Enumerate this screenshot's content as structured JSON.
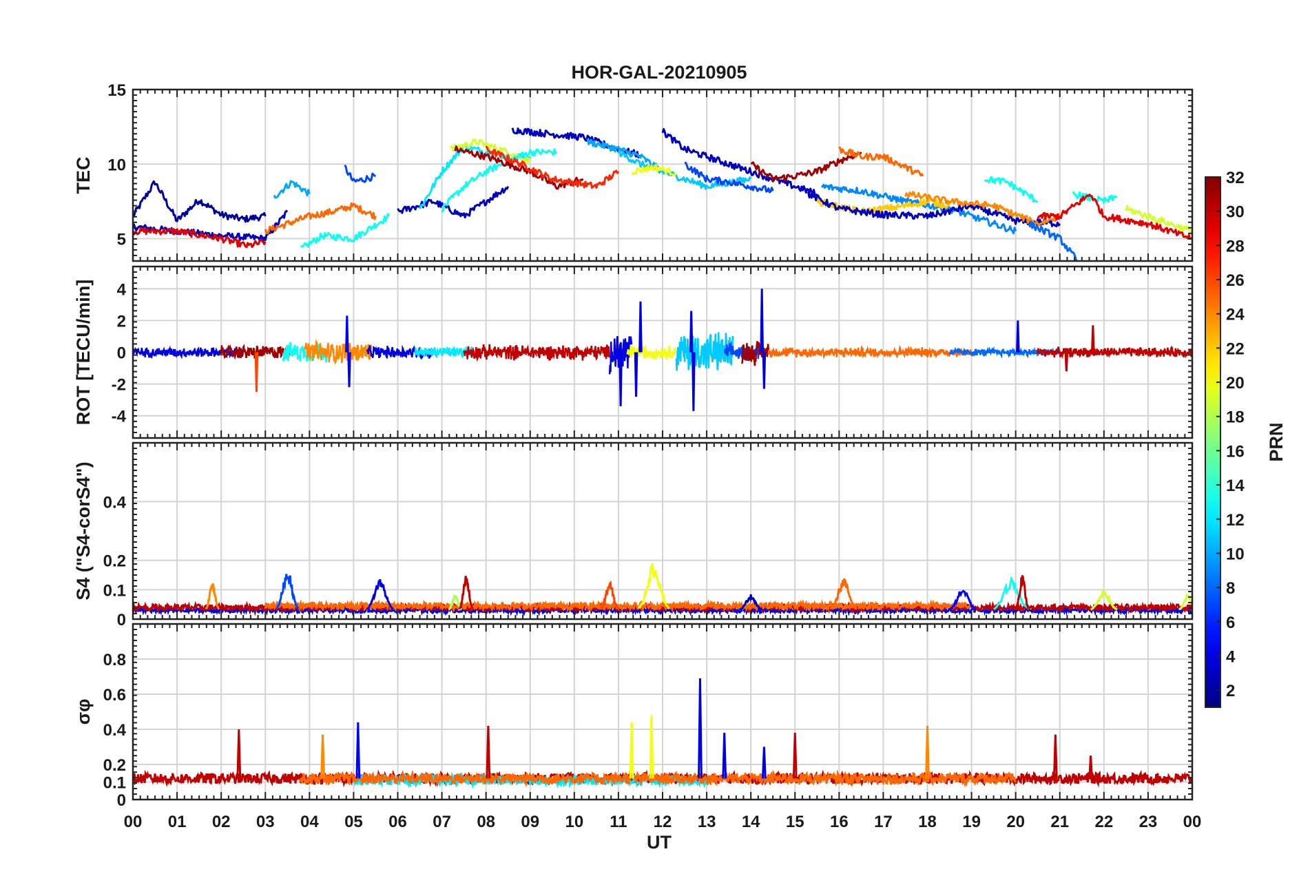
{
  "chart_data": {
    "type": "line",
    "title": "HOR-GAL-20210905",
    "xlabel": "UT",
    "x_tick_labels": [
      "00",
      "01",
      "02",
      "03",
      "04",
      "05",
      "06",
      "07",
      "08",
      "09",
      "10",
      "11",
      "12",
      "13",
      "14",
      "15",
      "16",
      "17",
      "18",
      "19",
      "20",
      "21",
      "22",
      "23",
      "00"
    ],
    "xlim_hours": [
      0,
      24
    ],
    "grid": true,
    "colorbar": {
      "label": "PRN",
      "range": [
        1,
        32
      ],
      "colormap": "jet",
      "tick_labels": [
        "2",
        "4",
        "6",
        "8",
        "10",
        "12",
        "14",
        "16",
        "18",
        "20",
        "22",
        "24",
        "26",
        "28",
        "30",
        "32"
      ]
    },
    "panels": [
      {
        "ylabel": "TEC",
        "ylim": [
          3.5,
          15
        ],
        "y_tick_labels": [
          "5",
          "10",
          "15"
        ],
        "series": [
          {
            "prn": 2,
            "x": [
              0.0,
              0.5,
              1.0,
              1.5,
              2.0,
              2.5,
              3.0
            ],
            "y": [
              6.5,
              8.8,
              6.2,
              7.6,
              6.6,
              6.3,
              6.5
            ]
          },
          {
            "prn": 3,
            "x": [
              0.0,
              1.0,
              2.0,
              3.0,
              3.5
            ],
            "y": [
              5.8,
              5.5,
              5.2,
              5.0,
              6.8
            ]
          },
          {
            "prn": 10,
            "x": [
              3.2,
              3.6,
              4.0
            ],
            "y": [
              7.8,
              8.8,
              8.0
            ]
          },
          {
            "prn": 7,
            "x": [
              4.8,
              5.0,
              5.5
            ],
            "y": [
              9.8,
              8.8,
              9.2
            ]
          },
          {
            "prn": 13,
            "x": [
              3.8,
              4.3,
              5.0,
              5.8
            ],
            "y": [
              4.3,
              5.2,
              5.0,
              6.5
            ]
          },
          {
            "prn": 25,
            "x": [
              3.0,
              3.5,
              4.0,
              4.5,
              5.0,
              5.5
            ],
            "y": [
              5.5,
              6.0,
              6.5,
              6.8,
              7.2,
              6.5
            ]
          },
          {
            "prn": 29,
            "x": [
              0.0,
              1.0,
              2.0,
              2.6,
              3.0
            ],
            "y": [
              5.5,
              5.5,
              5.0,
              4.5,
              4.8
            ]
          },
          {
            "prn": 3,
            "x": [
              6.0,
              6.8,
              7.5,
              8.0,
              8.5
            ],
            "y": [
              6.8,
              7.5,
              6.5,
              7.5,
              8.5
            ]
          },
          {
            "prn": 12,
            "x": [
              6.5,
              7.0,
              7.5,
              8.0,
              8.5,
              9.0
            ],
            "y": [
              7.0,
              9.5,
              11.2,
              10.8,
              10.5,
              10.5
            ]
          },
          {
            "prn": 19,
            "x": [
              7.2,
              7.8,
              8.5,
              9.0
            ],
            "y": [
              11.0,
              11.5,
              10.8,
              10.2
            ]
          },
          {
            "prn": 13,
            "x": [
              7.0,
              7.5,
              8.0,
              8.5,
              9.0,
              9.6
            ],
            "y": [
              7.0,
              8.5,
              9.5,
              10.2,
              10.8,
              10.8
            ]
          },
          {
            "prn": 31,
            "x": [
              7.3,
              8.0,
              8.5,
              9.0,
              9.6,
              10.2
            ],
            "y": [
              11.0,
              10.5,
              10.0,
              9.5,
              8.5,
              9.0
            ]
          },
          {
            "prn": 27,
            "x": [
              8.0,
              8.8,
              9.5,
              10.5,
              11.0
            ],
            "y": [
              11.0,
              10.0,
              9.0,
              8.5,
              9.5
            ]
          },
          {
            "prn": 3,
            "x": [
              8.6,
              9.5,
              10.2,
              11.0,
              11.5
            ],
            "y": [
              12.3,
              12.0,
              11.8,
              11.0,
              10.6
            ]
          },
          {
            "prn": 10,
            "x": [
              10.3,
              11.0,
              11.5,
              12.0
            ],
            "y": [
              11.5,
              11.0,
              10.5,
              9.5
            ]
          },
          {
            "prn": 11,
            "x": [
              11.0,
              11.5,
              12.0,
              12.5,
              13.0,
              14.0
            ],
            "y": [
              10.8,
              10.0,
              9.5,
              9.0,
              8.5,
              9.0
            ]
          },
          {
            "prn": 20,
            "x": [
              11.3,
              11.8,
              12.3
            ],
            "y": [
              9.5,
              9.8,
              9.4
            ]
          },
          {
            "prn": 3,
            "x": [
              12.0,
              12.5,
              13.0,
              13.5,
              14.0,
              14.5,
              15.0,
              15.5
            ],
            "y": [
              12.2,
              11.0,
              10.5,
              10.0,
              9.5,
              9.0,
              8.5,
              8.0
            ]
          },
          {
            "prn": 7,
            "x": [
              12.5,
              13.0,
              13.5,
              14.0,
              14.5
            ],
            "y": [
              10.0,
              9.0,
              8.8,
              8.5,
              8.2
            ]
          },
          {
            "prn": 31,
            "x": [
              14.0,
              14.5,
              15.0,
              15.5,
              16.0,
              16.5
            ],
            "y": [
              10.0,
              9.0,
              9.2,
              9.5,
              10.2,
              10.8
            ]
          },
          {
            "prn": 25,
            "x": [
              16.0,
              16.5,
              17.0,
              17.5,
              17.9
            ],
            "y": [
              11.0,
              10.5,
              10.5,
              9.8,
              9.2
            ]
          },
          {
            "prn": 9,
            "x": [
              15.6,
              16.5,
              17.5,
              18.5,
              19.5,
              20.0
            ],
            "y": [
              8.5,
              8.2,
              7.5,
              7.0,
              6.0,
              5.5
            ]
          },
          {
            "prn": 22,
            "x": [
              15.5,
              16.5,
              17.5,
              18.0,
              18.5
            ],
            "y": [
              7.5,
              6.8,
              7.2,
              7.5,
              7.2
            ]
          },
          {
            "prn": 3,
            "x": [
              15.3,
              16.0,
              17.0,
              18.0,
              19.0,
              20.0,
              21.0
            ],
            "y": [
              8.0,
              7.0,
              6.6,
              6.5,
              7.2,
              6.2,
              6.0
            ]
          },
          {
            "prn": 13,
            "x": [
              19.3,
              19.8,
              20.5
            ],
            "y": [
              9.0,
              8.8,
              7.5
            ]
          },
          {
            "prn": 24,
            "x": [
              17.5,
              18.5,
              19.5,
              20.5,
              21.0
            ],
            "y": [
              8.0,
              7.5,
              7.2,
              6.0,
              6.5
            ]
          },
          {
            "prn": 8,
            "x": [
              20.3,
              21.0,
              21.4
            ],
            "y": [
              6.0,
              5.0,
              3.5
            ]
          },
          {
            "prn": 13,
            "x": [
              21.3,
              22.0,
              22.3
            ],
            "y": [
              8.0,
              7.5,
              7.8
            ]
          },
          {
            "prn": 29,
            "x": [
              20.5,
              21.0,
              21.7,
              22.0,
              23.0,
              24.0
            ],
            "y": [
              6.5,
              6.5,
              8.0,
              6.5,
              6.0,
              5.0
            ]
          },
          {
            "prn": 19,
            "x": [
              22.5,
              23.0,
              23.5,
              24.0
            ],
            "y": [
              7.0,
              6.5,
              6.0,
              5.5
            ]
          }
        ]
      },
      {
        "ylabel": "ROT [TECU/min]",
        "ylim": [
          -5.4,
          5.4
        ],
        "y_tick_labels": [
          "-4",
          "-2",
          "0",
          "2",
          "4"
        ],
        "segments": [
          {
            "prn": 4,
            "x0": 0.0,
            "x1": 2.5,
            "amp": 0.35
          },
          {
            "prn": 31,
            "x0": 2.0,
            "x1": 3.6,
            "amp": 0.5
          },
          {
            "prn": 13,
            "x0": 3.4,
            "x1": 4.4,
            "amp": 0.7
          },
          {
            "prn": 24,
            "x0": 3.9,
            "x1": 5.4,
            "amp": 0.8
          },
          {
            "prn": 4,
            "x0": 5.3,
            "x1": 6.8,
            "amp": 0.45
          },
          {
            "prn": 12,
            "x0": 6.4,
            "x1": 7.8,
            "amp": 0.4
          },
          {
            "prn": 30,
            "x0": 7.5,
            "x1": 10.8,
            "amp": 0.55
          },
          {
            "prn": 4,
            "x0": 10.8,
            "x1": 11.3,
            "amp": 1.8
          },
          {
            "prn": 20,
            "x0": 11.2,
            "x1": 12.3,
            "amp": 0.5
          },
          {
            "prn": 11,
            "x0": 12.3,
            "x1": 13.6,
            "amp": 1.5
          },
          {
            "prn": 7,
            "x0": 13.4,
            "x1": 14.2,
            "amp": 0.6
          },
          {
            "prn": 31,
            "x0": 13.8,
            "x1": 14.4,
            "amp": 0.9
          },
          {
            "prn": 25,
            "x0": 14.4,
            "x1": 19.0,
            "amp": 0.35
          },
          {
            "prn": 8,
            "x0": 18.5,
            "x1": 21.0,
            "amp": 0.25
          },
          {
            "prn": 30,
            "x0": 20.5,
            "x1": 24.0,
            "amp": 0.35
          }
        ],
        "spikes": [
          {
            "prn": 26,
            "x": 2.8,
            "y": -2.5
          },
          {
            "prn": 5,
            "x": 4.85,
            "y": 2.3
          },
          {
            "prn": 5,
            "x": 4.9,
            "y": -2.2
          },
          {
            "prn": 4,
            "x": 11.05,
            "y": -3.4
          },
          {
            "prn": 4,
            "x": 11.5,
            "y": 3.2
          },
          {
            "prn": 4,
            "x": 11.4,
            "y": -2.8
          },
          {
            "prn": 4,
            "x": 12.7,
            "y": -3.7
          },
          {
            "prn": 4,
            "x": 12.65,
            "y": 2.6
          },
          {
            "prn": 4,
            "x": 14.25,
            "y": 4.0
          },
          {
            "prn": 4,
            "x": 14.3,
            "y": -2.3
          },
          {
            "prn": 4,
            "x": 20.05,
            "y": 2.0
          },
          {
            "prn": 30,
            "x": 21.75,
            "y": 1.7
          },
          {
            "prn": 30,
            "x": 21.15,
            "y": -1.2
          }
        ]
      },
      {
        "ylabel": "S4 (\"S4-corS4\")",
        "ylim": [
          0,
          0.6
        ],
        "y_tick_labels": [
          "0",
          "0.1",
          "0.2",
          "0.4"
        ],
        "base_segments": [
          {
            "prn": 4,
            "x0": 0.0,
            "x1": 24.0,
            "level": 0.03
          },
          {
            "prn": 30,
            "x0": 0.0,
            "x1": 24.0,
            "level": 0.04
          },
          {
            "prn": 25,
            "x0": 3.0,
            "x1": 19.0,
            "level": 0.045
          }
        ],
        "bumps": [
          {
            "prn": 24,
            "x": 1.8,
            "w": 0.15,
            "h": 0.12
          },
          {
            "prn": 7,
            "x": 3.5,
            "w": 0.25,
            "h": 0.16
          },
          {
            "prn": 4,
            "x": 5.6,
            "w": 0.3,
            "h": 0.13
          },
          {
            "prn": 18,
            "x": 7.3,
            "w": 0.15,
            "h": 0.08
          },
          {
            "prn": 30,
            "x": 7.55,
            "w": 0.15,
            "h": 0.14
          },
          {
            "prn": 26,
            "x": 10.8,
            "w": 0.2,
            "h": 0.12
          },
          {
            "prn": 20,
            "x": 11.8,
            "w": 0.35,
            "h": 0.18
          },
          {
            "prn": 3,
            "x": 14.0,
            "w": 0.25,
            "h": 0.08
          },
          {
            "prn": 25,
            "x": 16.1,
            "w": 0.3,
            "h": 0.13
          },
          {
            "prn": 5,
            "x": 18.8,
            "w": 0.3,
            "h": 0.1
          },
          {
            "prn": 13,
            "x": 19.9,
            "w": 0.4,
            "h": 0.13
          },
          {
            "prn": 30,
            "x": 20.15,
            "w": 0.15,
            "h": 0.14
          },
          {
            "prn": 19,
            "x": 22.0,
            "w": 0.3,
            "h": 0.09
          },
          {
            "prn": 19,
            "x": 23.9,
            "w": 0.2,
            "h": 0.08
          }
        ]
      },
      {
        "ylabel": "σφ",
        "ylim": [
          0,
          1.0
        ],
        "y_tick_labels": [
          "0",
          "0.1",
          "0.2",
          "0.4",
          "0.6",
          "0.8"
        ],
        "base_segments": [
          {
            "prn": 30,
            "x0": 0.0,
            "x1": 24.0,
            "level": 0.12
          },
          {
            "prn": 12,
            "x0": 5.0,
            "x1": 13.0,
            "level": 0.11
          },
          {
            "prn": 25,
            "x0": 3.8,
            "x1": 20.0,
            "level": 0.12
          }
        ],
        "spikes": [
          {
            "prn": 30,
            "x": 2.4,
            "y": 0.4
          },
          {
            "prn": 24,
            "x": 4.3,
            "y": 0.37
          },
          {
            "prn": 5,
            "x": 5.1,
            "y": 0.44
          },
          {
            "prn": 30,
            "x": 8.05,
            "y": 0.42
          },
          {
            "prn": 20,
            "x": 11.3,
            "y": 0.44
          },
          {
            "prn": 20,
            "x": 11.75,
            "y": 0.48
          },
          {
            "prn": 4,
            "x": 12.85,
            "y": 0.69
          },
          {
            "prn": 4,
            "x": 13.4,
            "y": 0.38
          },
          {
            "prn": 4,
            "x": 14.3,
            "y": 0.3
          },
          {
            "prn": 30,
            "x": 15.0,
            "y": 0.38
          },
          {
            "prn": 24,
            "x": 18.0,
            "y": 0.42
          },
          {
            "prn": 30,
            "x": 20.9,
            "y": 0.37
          },
          {
            "prn": 30,
            "x": 21.7,
            "y": 0.25
          }
        ]
      }
    ]
  }
}
